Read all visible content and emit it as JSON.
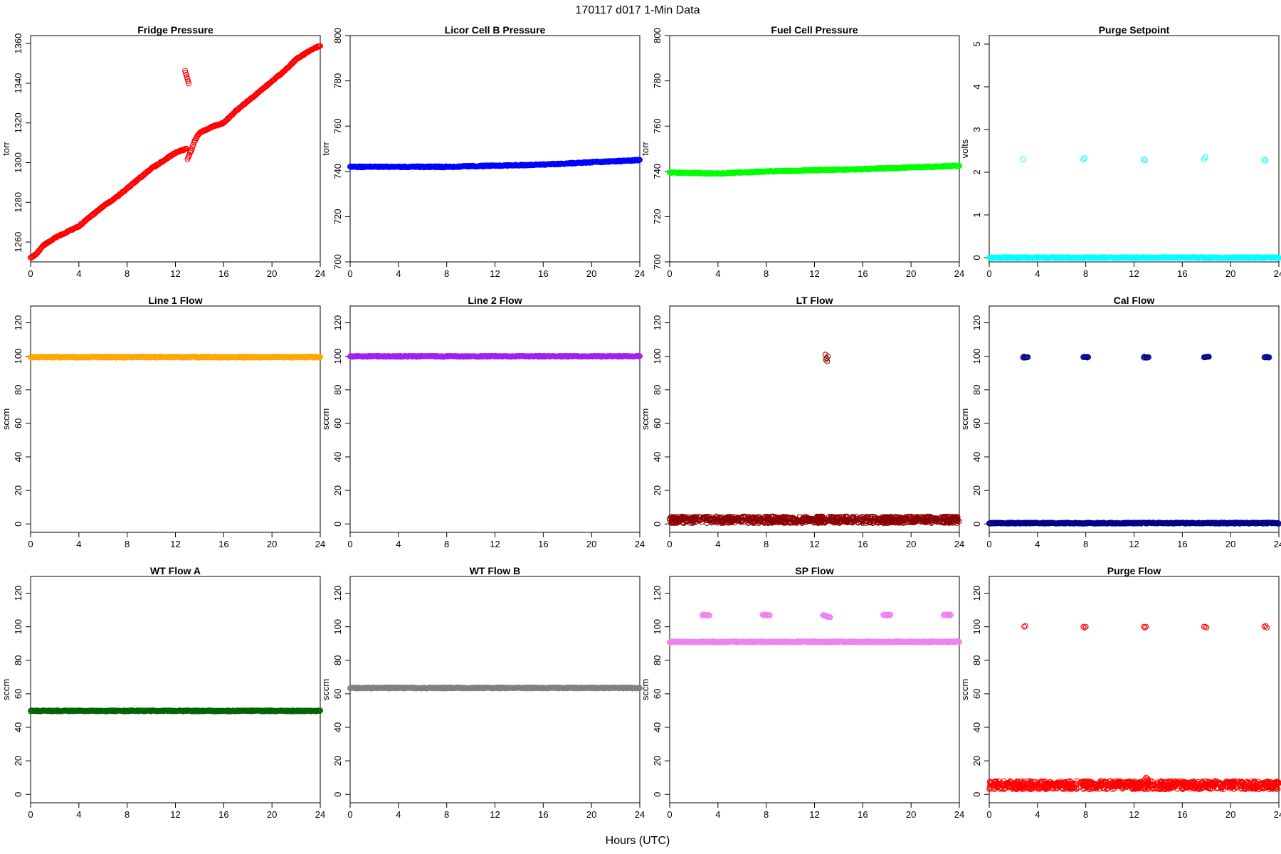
{
  "figure": {
    "title": "170117   d017   1-Min Data",
    "xlabel": "Hours (UTC)"
  },
  "chart_data": [
    {
      "type": "scatter",
      "title": "Fridge Pressure",
      "ylabel": "torr",
      "color": "#ff0000",
      "xlim": [
        0,
        24
      ],
      "ylim": [
        1250,
        1364
      ],
      "xticks": [
        0,
        4,
        8,
        12,
        16,
        20,
        24
      ],
      "yticks": [
        1260,
        1280,
        1300,
        1320,
        1340,
        1360
      ],
      "series": [
        {
          "kind": "ramp",
          "x": [
            0,
            0.5,
            1,
            2,
            3,
            4,
            5,
            6,
            7,
            8,
            9,
            10,
            11,
            12,
            12.9
          ],
          "y": [
            1252,
            1254,
            1258,
            1262,
            1265,
            1268,
            1273,
            1278,
            1282,
            1287,
            1292,
            1297,
            1301,
            1305,
            1307
          ]
        },
        {
          "kind": "ramp",
          "x": [
            13,
            13.3,
            13.6,
            14,
            15,
            16,
            17,
            18,
            19,
            20,
            21,
            22,
            23,
            24
          ],
          "y": [
            1302,
            1306,
            1311,
            1315,
            1318,
            1320,
            1326,
            1331,
            1336,
            1341,
            1346,
            1352,
            1356,
            1359
          ]
        },
        {
          "kind": "ramp",
          "x": [
            12.8,
            13.1
          ],
          "y": [
            1346,
            1340
          ]
        }
      ]
    },
    {
      "type": "scatter",
      "title": "Licor Cell B Pressure",
      "ylabel": "torr",
      "color": "#0000ff",
      "xlim": [
        0,
        24
      ],
      "ylim": [
        700,
        800
      ],
      "xticks": [
        0,
        4,
        8,
        12,
        16,
        20,
        24
      ],
      "yticks": [
        700,
        720,
        740,
        760,
        780,
        800
      ],
      "series": [
        {
          "kind": "ramp",
          "x": [
            0,
            8,
            16,
            24
          ],
          "y": [
            742,
            742,
            743,
            745
          ]
        }
      ]
    },
    {
      "type": "scatter",
      "title": "Fuel Cell Pressure",
      "ylabel": "torr",
      "color": "#00ff00",
      "xlim": [
        0,
        24
      ],
      "ylim": [
        700,
        800
      ],
      "xticks": [
        0,
        4,
        8,
        12,
        16,
        20,
        24
      ],
      "yticks": [
        700,
        720,
        740,
        760,
        780,
        800
      ],
      "series": [
        {
          "kind": "ramp",
          "x": [
            0,
            4,
            8,
            16,
            24
          ],
          "y": [
            739.5,
            739,
            740,
            741,
            742.5
          ]
        }
      ]
    },
    {
      "type": "scatter",
      "title": "Purge Setpoint",
      "ylabel": "volts",
      "color": "#00ffff",
      "xlim": [
        0,
        24
      ],
      "ylim": [
        -0.1,
        5.2
      ],
      "xticks": [
        0,
        4,
        8,
        12,
        16,
        20,
        24
      ],
      "yticks": [
        0,
        1,
        2,
        3,
        4,
        5
      ],
      "series": [
        {
          "kind": "ramp",
          "x": [
            0,
            24
          ],
          "y": [
            0,
            0
          ]
        },
        {
          "kind": "points",
          "x": [
            2.8,
            7.8,
            7.9,
            12.8,
            12.9,
            17.8,
            17.9,
            22.8,
            22.9
          ],
          "y": [
            2.3,
            2.3,
            2.33,
            2.3,
            2.28,
            2.3,
            2.35,
            2.3,
            2.27
          ]
        }
      ]
    },
    {
      "type": "scatter",
      "title": "Line 1 Flow",
      "ylabel": "sccm",
      "color": "#ffa500",
      "xlim": [
        0,
        24
      ],
      "ylim": [
        -5,
        130
      ],
      "xticks": [
        0,
        4,
        8,
        12,
        16,
        20,
        24
      ],
      "yticks": [
        0,
        20,
        40,
        60,
        80,
        100,
        120
      ],
      "series": [
        {
          "kind": "ramp",
          "x": [
            0,
            24
          ],
          "y": [
            99.5,
            99.5
          ]
        }
      ]
    },
    {
      "type": "scatter",
      "title": "Line 2 Flow",
      "ylabel": "sccm",
      "color": "#a020f0",
      "xlim": [
        0,
        24
      ],
      "ylim": [
        -5,
        130
      ],
      "xticks": [
        0,
        4,
        8,
        12,
        16,
        20,
        24
      ],
      "yticks": [
        0,
        20,
        40,
        60,
        80,
        100,
        120
      ],
      "series": [
        {
          "kind": "ramp",
          "x": [
            0,
            24
          ],
          "y": [
            100,
            100
          ]
        }
      ]
    },
    {
      "type": "scatter",
      "title": "LT Flow",
      "ylabel": "sccm",
      "color": "#8b0000",
      "xlim": [
        0,
        24
      ],
      "ylim": [
        -5,
        130
      ],
      "xticks": [
        0,
        4,
        8,
        12,
        16,
        20,
        24
      ],
      "yticks": [
        0,
        20,
        40,
        60,
        80,
        100,
        120
      ],
      "series": [
        {
          "kind": "band",
          "x": [
            0,
            24
          ],
          "y": [
            0.5,
            4.5
          ]
        },
        {
          "kind": "points",
          "x": [
            12.9,
            13.0,
            13.05,
            13.1,
            12.95
          ],
          "y": [
            101,
            99,
            97,
            100,
            98
          ]
        }
      ]
    },
    {
      "type": "scatter",
      "title": "Cal Flow",
      "ylabel": "sccm",
      "color": "#00008b",
      "xlim": [
        0,
        24
      ],
      "ylim": [
        -5,
        130
      ],
      "xticks": [
        0,
        4,
        8,
        12,
        16,
        20,
        24
      ],
      "yticks": [
        0,
        20,
        40,
        60,
        80,
        100,
        120
      ],
      "series": [
        {
          "kind": "ramp",
          "x": [
            0,
            24
          ],
          "y": [
            0.5,
            0.5
          ]
        },
        {
          "kind": "ramp",
          "x": [
            2.8,
            3.2
          ],
          "y": [
            99.5,
            99.5
          ]
        },
        {
          "kind": "ramp",
          "x": [
            7.8,
            8.2
          ],
          "y": [
            99.5,
            99.5
          ]
        },
        {
          "kind": "ramp",
          "x": [
            12.8,
            13.2
          ],
          "y": [
            99.5,
            99.5
          ]
        },
        {
          "kind": "ramp",
          "x": [
            17.8,
            18.2
          ],
          "y": [
            99.5,
            99.5
          ]
        },
        {
          "kind": "ramp",
          "x": [
            22.8,
            23.2
          ],
          "y": [
            99.5,
            99.5
          ]
        }
      ]
    },
    {
      "type": "scatter",
      "title": "WT Flow A",
      "ylabel": "sccm",
      "color": "#006400",
      "xlim": [
        0,
        24
      ],
      "ylim": [
        -5,
        130
      ],
      "xticks": [
        0,
        4,
        8,
        12,
        16,
        20,
        24
      ],
      "yticks": [
        0,
        20,
        40,
        60,
        80,
        100,
        120
      ],
      "series": [
        {
          "kind": "ramp",
          "x": [
            0,
            24
          ],
          "y": [
            49.8,
            49.8
          ]
        }
      ]
    },
    {
      "type": "scatter",
      "title": "WT Flow B",
      "ylabel": "sccm",
      "color": "#808080",
      "xlim": [
        0,
        24
      ],
      "ylim": [
        -5,
        130
      ],
      "xticks": [
        0,
        4,
        8,
        12,
        16,
        20,
        24
      ],
      "yticks": [
        0,
        20,
        40,
        60,
        80,
        100,
        120
      ],
      "series": [
        {
          "kind": "ramp",
          "x": [
            0,
            24
          ],
          "y": [
            63.5,
            63.5
          ]
        }
      ]
    },
    {
      "type": "scatter",
      "title": "SP Flow",
      "ylabel": "sccm",
      "color": "#ee82ee",
      "xlim": [
        0,
        24
      ],
      "ylim": [
        -5,
        130
      ],
      "xticks": [
        0,
        4,
        8,
        12,
        16,
        20,
        24
      ],
      "yticks": [
        0,
        20,
        40,
        60,
        80,
        100,
        120
      ],
      "series": [
        {
          "kind": "ramp",
          "x": [
            0,
            24
          ],
          "y": [
            91,
            91
          ]
        },
        {
          "kind": "ramp",
          "x": [
            2.7,
            3.3
          ],
          "y": [
            107,
            107
          ]
        },
        {
          "kind": "ramp",
          "x": [
            7.7,
            8.3
          ],
          "y": [
            107,
            107
          ]
        },
        {
          "kind": "ramp",
          "x": [
            12.7,
            13.3
          ],
          "y": [
            107,
            105.5
          ]
        },
        {
          "kind": "ramp",
          "x": [
            17.7,
            18.3
          ],
          "y": [
            107,
            107
          ]
        },
        {
          "kind": "ramp",
          "x": [
            22.7,
            23.3
          ],
          "y": [
            107,
            107
          ]
        }
      ]
    },
    {
      "type": "scatter",
      "title": "Purge Flow",
      "ylabel": "sccm",
      "color": "#ff0000",
      "xlim": [
        0,
        24
      ],
      "ylim": [
        -5,
        130
      ],
      "xticks": [
        0,
        4,
        8,
        12,
        16,
        20,
        24
      ],
      "yticks": [
        0,
        20,
        40,
        60,
        80,
        100,
        120
      ],
      "series": [
        {
          "kind": "band",
          "x": [
            0,
            24
          ],
          "y": [
            3,
            8
          ]
        },
        {
          "kind": "points",
          "x": [
            12.9,
            13.0,
            13.1,
            13.2
          ],
          "y": [
            9,
            10,
            9.5,
            8.5
          ]
        },
        {
          "kind": "points",
          "x": [
            2.9,
            3.0,
            7.8,
            7.9,
            8.0,
            12.8,
            12.9,
            13.0,
            17.8,
            17.9,
            18.0,
            22.8,
            22.9,
            23.0
          ],
          "y": [
            100,
            100.5,
            100,
            99.5,
            100,
            100,
            99.5,
            100,
            100,
            100,
            99.5,
            100,
            100.5,
            99.5
          ]
        }
      ]
    }
  ]
}
